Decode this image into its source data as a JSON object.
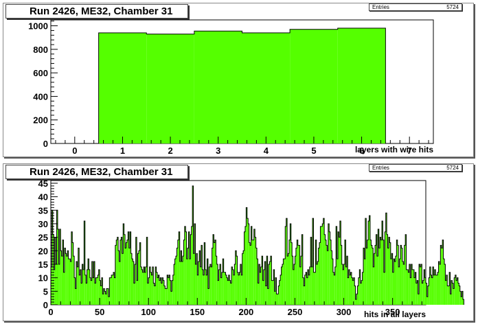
{
  "chart_data": [
    {
      "type": "bar",
      "title": "Run 2426, ME32, Chamber 31",
      "stats": {
        "label": "Entries",
        "value": "5724"
      },
      "xlabel": "layers with wire hits",
      "ylabel": "",
      "xlim": [
        -0.5,
        7.5
      ],
      "ylim": [
        0,
        1050
      ],
      "xticks": [
        0,
        1,
        2,
        3,
        4,
        5,
        6,
        7
      ],
      "yticks": [
        0,
        200,
        400,
        600,
        800,
        1000
      ],
      "bin_edges": [
        0.5,
        1.5,
        2.5,
        3.5,
        4.5,
        5.5,
        6.5
      ],
      "values": [
        940,
        930,
        955,
        940,
        970,
        980
      ],
      "fill_color": "#55ff00",
      "line_color": "#000000"
    },
    {
      "type": "bar",
      "title": "Run 2426, ME32, Chamber 31",
      "stats": {
        "label": "Entries",
        "value": "5724"
      },
      "xlabel": "hits in all layers",
      "ylabel": "",
      "xlim": [
        0,
        384
      ],
      "ylim": [
        0,
        46
      ],
      "xticks": [
        0,
        50,
        100,
        150,
        200,
        250,
        300,
        350
      ],
      "yticks": [
        0,
        5,
        10,
        15,
        20,
        25,
        30,
        35,
        40,
        45
      ],
      "bin_width": 1,
      "values": [
        14,
        35,
        26,
        13,
        25,
        15,
        35,
        28,
        15,
        28,
        20,
        18,
        24,
        12,
        21,
        19,
        18,
        20,
        17,
        17,
        16,
        27,
        23,
        18,
        10,
        6,
        16,
        14,
        21,
        11,
        13,
        8,
        15,
        13,
        31,
        11,
        8,
        13,
        17,
        13,
        10,
        9,
        16,
        10,
        16,
        8,
        10,
        10,
        11,
        13,
        9,
        7,
        10,
        4,
        6,
        5,
        4,
        6,
        6,
        3,
        10,
        10,
        11,
        11,
        12,
        10,
        22,
        24,
        25,
        20,
        16,
        24,
        25,
        19,
        30,
        26,
        21,
        23,
        24,
        27,
        21,
        27,
        19,
        17,
        16,
        8,
        15,
        25,
        9,
        19,
        20,
        23,
        14,
        13,
        12,
        14,
        12,
        14,
        25,
        8,
        10,
        14,
        12,
        11,
        14,
        8,
        7,
        14,
        12,
        10,
        11,
        9,
        10,
        8,
        10,
        9,
        7,
        6,
        6,
        11,
        10,
        11,
        9,
        5,
        9,
        11,
        15,
        17,
        18,
        21,
        24,
        27,
        16,
        20,
        16,
        18,
        24,
        29,
        27,
        17,
        21,
        27,
        17,
        26,
        29,
        44,
        19,
        30,
        15,
        19,
        11,
        16,
        20,
        14,
        22,
        13,
        11,
        23,
        13,
        11,
        17,
        6,
        14,
        15,
        14,
        21,
        26,
        23,
        24,
        18,
        15,
        9,
        13,
        15,
        10,
        12,
        17,
        12,
        12,
        11,
        10,
        9,
        11,
        9,
        8,
        14,
        13,
        11,
        15,
        20,
        18,
        12,
        11,
        12,
        15,
        11,
        19,
        20,
        27,
        29,
        36,
        32,
        30,
        23,
        22,
        29,
        24,
        24,
        28,
        25,
        21,
        17,
        8,
        15,
        12,
        14,
        18,
        9,
        13,
        16,
        7,
        18,
        6,
        15,
        16,
        18,
        9,
        9,
        13,
        5,
        10,
        4,
        4,
        7,
        9,
        11,
        14,
        15,
        17,
        17,
        29,
        32,
        18,
        19,
        24,
        30,
        23,
        18,
        13,
        15,
        18,
        21,
        24,
        22,
        22,
        14,
        18,
        26,
        10,
        7,
        11,
        12,
        10,
        13,
        11,
        14,
        25,
        14,
        32,
        12,
        12,
        24,
        15,
        16,
        21,
        23,
        29,
        29,
        30,
        32,
        26,
        24,
        22,
        20,
        30,
        27,
        24,
        20,
        17,
        12,
        11,
        14,
        29,
        17,
        27,
        25,
        31,
        22,
        15,
        13,
        15,
        24,
        14,
        18,
        10,
        13,
        11,
        12,
        10,
        9,
        10,
        7,
        2,
        4,
        7,
        10,
        13,
        8,
        9,
        12,
        21,
        17,
        32,
        21,
        24,
        31,
        33,
        24,
        22,
        21,
        14,
        19,
        22,
        26,
        18,
        28,
        21,
        25,
        24,
        31,
        24,
        12,
        27,
        34,
        26,
        21,
        25,
        23,
        17,
        19,
        12,
        17,
        16,
        18,
        24,
        22,
        14,
        17,
        22,
        21,
        16,
        15,
        22,
        26,
        13,
        13,
        12,
        15,
        10,
        15,
        13,
        13,
        10,
        12,
        8,
        9,
        4,
        15,
        14,
        15,
        8,
        9,
        13,
        10,
        8,
        3,
        7,
        10,
        14,
        11,
        10,
        14,
        11,
        13,
        11,
        11,
        12,
        16,
        15,
        22,
        21,
        24,
        17,
        15,
        9,
        11,
        7,
        7,
        12,
        4,
        9,
        8,
        6,
        10,
        11,
        9,
        10,
        8,
        7,
        5,
        3,
        5,
        2
      ],
      "fill_color": "#55ff00",
      "line_color": "#000000"
    }
  ]
}
